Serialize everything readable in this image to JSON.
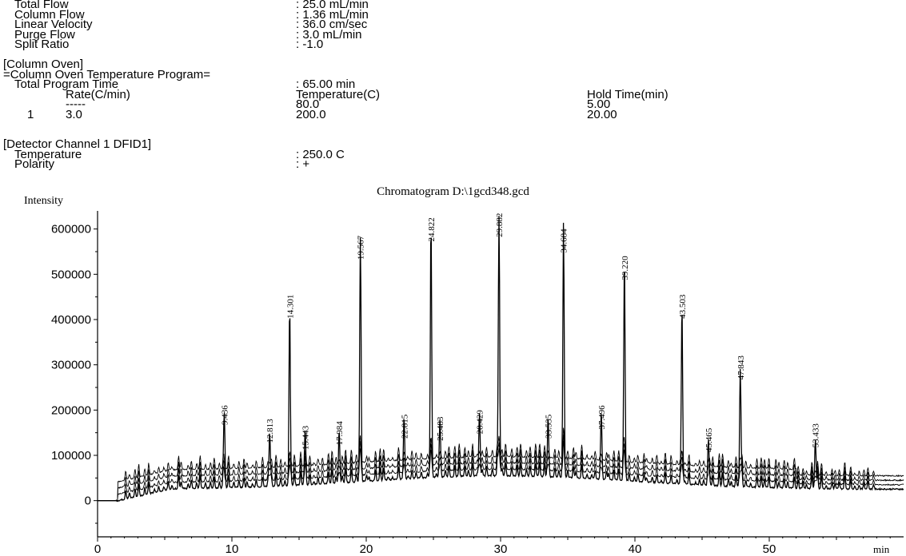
{
  "method_header": {
    "flow_rows": [
      {
        "label": "Total Flow",
        "value": ": 25.0 mL/min"
      },
      {
        "label": "Column Flow",
        "value": ": 1.36 mL/min"
      },
      {
        "label": "Linear Velocity",
        "value": ": 36.0 cm/sec"
      },
      {
        "label": "Purge Flow",
        "value": ": 3.0 mL/min"
      },
      {
        "label": "Split Ratio",
        "value": ": -1.0"
      }
    ],
    "column_oven": {
      "section": "[Column Oven]",
      "program_title": "=Column Oven Temperature Program=",
      "total_label": "Total Program Time",
      "total_value": ": 65.00 min",
      "col_rate": "Rate(C/min)",
      "col_temp": "Temperature(C)",
      "col_hold": "Hold Time(min)",
      "rows": [
        {
          "idx": "",
          "rate": "-----",
          "temp": "80.0",
          "hold": "5.00"
        },
        {
          "idx": "1",
          "rate": "3.0",
          "temp": "200.0",
          "hold": "20.00"
        }
      ]
    },
    "detector": {
      "section": "[Detector Channel 1 DFID1]",
      "temp_label": "Temperature",
      "temp_value": ": 250.0 C",
      "polarity_label": "Polarity",
      "polarity_value": ": +"
    }
  },
  "chart_data": {
    "type": "line",
    "title": "Chromatogram D:\\1gcd348.gcd",
    "ylabel": "Intensity",
    "xlabel": "min",
    "xlim": [
      0,
      60
    ],
    "ylim": [
      -80000,
      640000
    ],
    "xticks": [
      0,
      10,
      20,
      30,
      40,
      50
    ],
    "yticks": [
      0,
      100000,
      200000,
      300000,
      400000,
      500000,
      600000
    ],
    "ytick_labels": [
      "0",
      "100000",
      "200000",
      "300000",
      "400000",
      "500000",
      "600000"
    ],
    "grid": false,
    "labeled_peaks": [
      {
        "rt": 9.436,
        "label": "9.436",
        "height": 160000
      },
      {
        "rt": 12.813,
        "label": "12.813",
        "height": 120000
      },
      {
        "rt": 14.301,
        "label": "14.301",
        "height": 395000
      },
      {
        "rt": 15.443,
        "label": "15.443",
        "height": 105000
      },
      {
        "rt": 17.984,
        "label": "17.984",
        "height": 115000
      },
      {
        "rt": 19.567,
        "label": "19.567",
        "height": 525000
      },
      {
        "rt": 22.815,
        "label": "22.815",
        "height": 130000
      },
      {
        "rt": 24.822,
        "label": "24.822",
        "height": 565000
      },
      {
        "rt": 25.483,
        "label": "25.483",
        "height": 125000
      },
      {
        "rt": 28.429,
        "label": "28.429",
        "height": 140000
      },
      {
        "rt": 29.882,
        "label": "29.882",
        "height": 575000
      },
      {
        "rt": 33.535,
        "label": "33.535",
        "height": 130000
      },
      {
        "rt": 34.684,
        "label": "34.684",
        "height": 540000
      },
      {
        "rt": 37.496,
        "label": "37.496",
        "height": 150000
      },
      {
        "rt": 39.22,
        "label": "39.220",
        "height": 480000
      },
      {
        "rt": 43.503,
        "label": "43.503",
        "height": 395000
      },
      {
        "rt": 45.465,
        "label": "45.465",
        "height": 100000
      },
      {
        "rt": 47.843,
        "label": "47.843",
        "height": 260000
      },
      {
        "rt": 53.433,
        "label": "53.433",
        "height": 110000
      }
    ]
  }
}
